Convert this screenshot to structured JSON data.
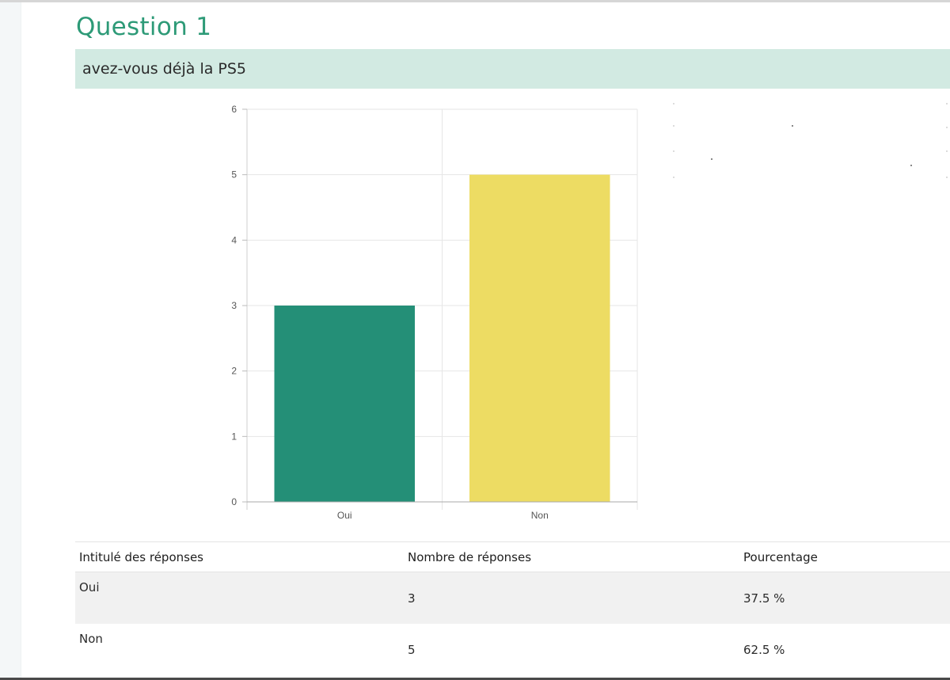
{
  "question": {
    "title": "Question 1",
    "text": "avez-vous déjà la PS5"
  },
  "colors": {
    "oui": "#248f77",
    "non": "#eddc63",
    "accent": "#2d9a77",
    "band": "#d2eae2"
  },
  "chart_data": {
    "type": "bar",
    "categories": [
      "Oui",
      "Non"
    ],
    "values": [
      3,
      5
    ],
    "colors": [
      "#248f77",
      "#eddc63"
    ],
    "ylim": [
      0,
      6
    ],
    "yticks": [
      0,
      1,
      2,
      3,
      4,
      5,
      6
    ],
    "grid": true
  },
  "table": {
    "headers": [
      "Intitulé des réponses",
      "Nombre de réponses",
      "Pourcentage"
    ],
    "rows": [
      [
        "Oui",
        "3",
        "37.5 %"
      ],
      [
        "Non",
        "5",
        "62.5 %"
      ]
    ]
  }
}
